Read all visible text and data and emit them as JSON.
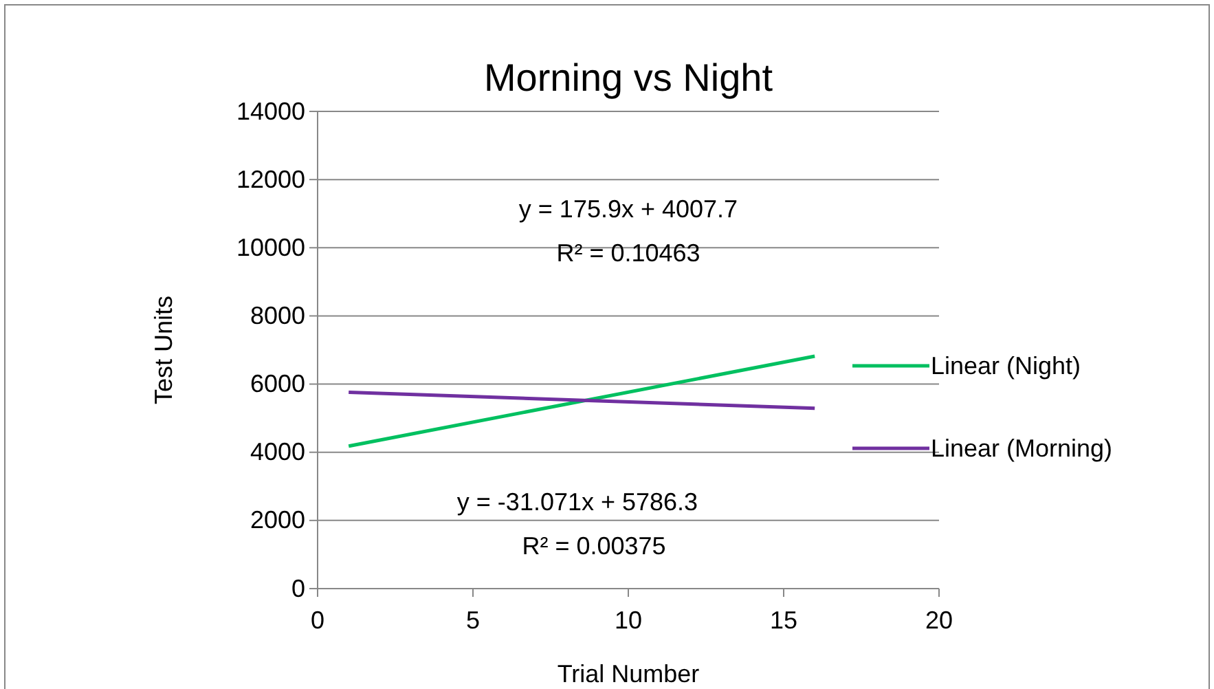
{
  "chart_data": {
    "type": "line",
    "title": "Morning vs Night",
    "xlabel": "Trial Number",
    "ylabel": "Test Units",
    "xlim": [
      0,
      20
    ],
    "xticks": [
      0,
      5,
      10,
      15,
      20
    ],
    "ylim": [
      0,
      14000
    ],
    "yticks": [
      0,
      2000,
      4000,
      6000,
      8000,
      10000,
      12000,
      14000
    ],
    "grid": "y",
    "x": [
      1,
      16
    ],
    "legend": "right",
    "marker": "none",
    "line_style": "solid",
    "series": [
      {
        "name": "Linear (Night)",
        "color": "#00c060",
        "values": [
          4180,
          6820
        ]
      },
      {
        "name": "Linear (Morning)",
        "color": "#7030a0",
        "values": [
          5760,
          5290
        ]
      }
    ],
    "annotations": [
      "y = 175.9x + 4007.7",
      "R² = 0.10463",
      "y = -31.071x + 5786.3",
      "R² = 0.00375"
    ]
  }
}
